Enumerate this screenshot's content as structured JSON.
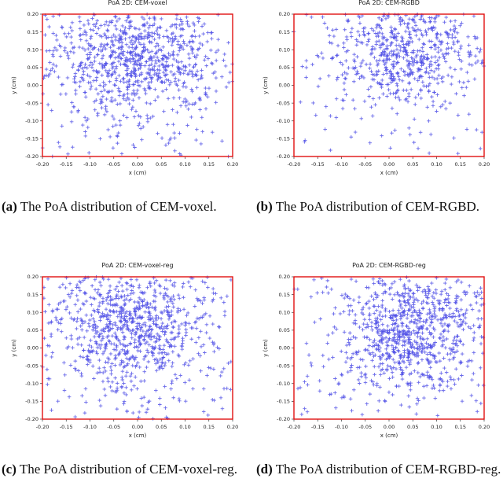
{
  "charts": [
    {
      "type": "scatter",
      "title": "PoA 2D: CEM-voxel",
      "xlabel": "x (cm)",
      "ylabel": "y (cm)",
      "xlim": [
        -0.2,
        0.2
      ],
      "ylim": [
        -0.2,
        0.2
      ],
      "xticks": [
        -0.2,
        -0.15,
        -0.1,
        -0.05,
        0.0,
        0.05,
        0.1,
        0.15,
        0.2
      ],
      "yticks": [
        -0.2,
        -0.15,
        -0.1,
        -0.05,
        0.0,
        0.05,
        0.1,
        0.15,
        0.2
      ],
      "bounds": {
        "xmin": -0.2,
        "xmax": 0.2,
        "ymin": -0.2,
        "ymax": 0.2
      },
      "marker": "+",
      "marker_color": "#5050e6",
      "bounds_color": "#e01010",
      "n_points": 900,
      "distribution": {
        "x_mean": 0.0,
        "x_sd": 0.085,
        "y_mean": 0.08,
        "y_sd": 0.085
      },
      "seed": 11,
      "caption": {
        "label": "(a)",
        "text": "The PoA distribution of CEM-voxel."
      }
    },
    {
      "type": "scatter",
      "title": "PoA 2D: CEM-RGBD",
      "xlabel": "x (cm)",
      "ylabel": "y (cm)",
      "xlim": [
        -0.2,
        0.2
      ],
      "ylim": [
        -0.2,
        0.2
      ],
      "xticks": [
        -0.2,
        -0.15,
        -0.1,
        -0.05,
        0.0,
        0.05,
        0.1,
        0.15,
        0.2
      ],
      "yticks": [
        -0.2,
        -0.15,
        -0.1,
        -0.05,
        0.0,
        0.05,
        0.1,
        0.15,
        0.2
      ],
      "bounds": {
        "xmin": -0.2,
        "xmax": 0.2,
        "ymin": -0.2,
        "ymax": 0.2
      },
      "marker": "+",
      "marker_color": "#5050e6",
      "bounds_color": "#e01010",
      "n_points": 650,
      "distribution": {
        "x_mean": 0.03,
        "x_sd": 0.08,
        "y_mean": 0.09,
        "y_sd": 0.07
      },
      "seed": 23,
      "caption": {
        "label": "(b)",
        "text": "The PoA distribution of CEM-RGBD."
      }
    },
    {
      "type": "scatter",
      "title": "PoA 2D: CEM-voxel-reg",
      "xlabel": "x (cm)",
      "ylabel": "y (cm)",
      "xlim": [
        -0.2,
        0.2
      ],
      "ylim": [
        -0.2,
        0.2
      ],
      "xticks": [
        -0.2,
        -0.15,
        -0.1,
        -0.05,
        0.0,
        0.05,
        0.1,
        0.15,
        0.2
      ],
      "yticks": [
        -0.2,
        -0.15,
        -0.1,
        -0.05,
        0.0,
        0.05,
        0.1,
        0.15,
        0.2
      ],
      "bounds": {
        "xmin": -0.2,
        "xmax": 0.2,
        "ymin": -0.2,
        "ymax": 0.2
      },
      "marker": "+",
      "marker_color": "#5050e6",
      "bounds_color": "#e01010",
      "n_points": 900,
      "distribution": {
        "x_mean": -0.01,
        "x_sd": 0.085,
        "y_mean": 0.07,
        "y_sd": 0.09
      },
      "seed": 37,
      "caption": {
        "label": "(c)",
        "text": "The PoA distribution of CEM-voxel-reg."
      }
    },
    {
      "type": "scatter",
      "title": "PoA 2D: CEM-RGBD-reg",
      "xlabel": "x (cm)",
      "ylabel": "y (cm)",
      "xlim": [
        -0.2,
        0.2
      ],
      "ylim": [
        -0.2,
        0.2
      ],
      "xticks": [
        -0.2,
        -0.15,
        -0.1,
        -0.05,
        0.0,
        0.05,
        0.1,
        0.15,
        0.2
      ],
      "yticks": [
        -0.2,
        -0.15,
        -0.1,
        -0.05,
        0.0,
        0.05,
        0.1,
        0.15,
        0.2
      ],
      "bounds": {
        "xmin": -0.2,
        "xmax": 0.2,
        "ymin": -0.2,
        "ymax": 0.2
      },
      "marker": "+",
      "marker_color": "#5050e6",
      "bounds_color": "#e01010",
      "n_points": 900,
      "distribution": {
        "x_mean": 0.05,
        "x_sd": 0.075,
        "y_mean": 0.05,
        "y_sd": 0.085
      },
      "seed": 53,
      "caption": {
        "label": "(d)",
        "text": "The PoA distribution of CEM-RGBD-reg."
      }
    }
  ]
}
